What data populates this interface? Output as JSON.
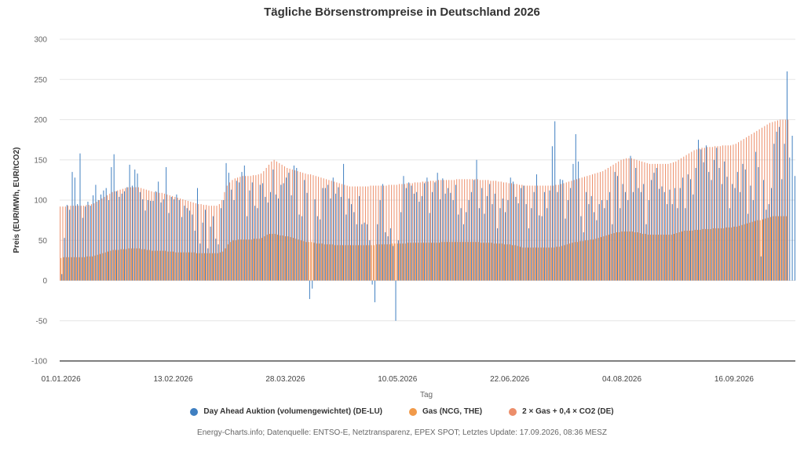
{
  "chart_data": {
    "type": "bar",
    "title": "Tägliche Börsenstrompreise in Deutschland 2026",
    "xlabel": "Tag",
    "ylabel": "Preis (EUR/MWh, EUR/tCO2)",
    "ylim": [
      -100,
      300
    ],
    "yticks": [
      -100,
      -50,
      0,
      50,
      100,
      150,
      200,
      250,
      300
    ],
    "xticks": [
      "01.01.2026",
      "13.02.2026",
      "28.03.2026",
      "10.05.2026",
      "22.06.2026",
      "04.08.2026",
      "16.09.2026"
    ],
    "xticks_day_index": [
      0,
      43,
      86,
      129,
      172,
      215,
      258
    ],
    "x_start": "01.01.2026",
    "grid": true,
    "legend_position": "bottom-center",
    "series": [
      {
        "name": "Day Ahead Auktion (volumengewichtet) (DE-LU)",
        "color": "#3f7fc1",
        "values": [
          8,
          53,
          94,
          88,
          135,
          128,
          95,
          158,
          78,
          92,
          98,
          93,
          106,
          119,
          100,
          107,
          112,
          115,
          100,
          141,
          157,
          111,
          104,
          108,
          111,
          116,
          144,
          118,
          138,
          133,
          110,
          101,
          87,
          100,
          99,
          99,
          111,
          123,
          97,
          101,
          141,
          84,
          104,
          101,
          107,
          100,
          79,
          93,
          90,
          87,
          82,
          62,
          115,
          46,
          72,
          88,
          40,
          67,
          80,
          52,
          45,
          90,
          100,
          146,
          134,
          113,
          100,
          124,
          122,
          135,
          143,
          80,
          112,
          122,
          93,
          90,
          119,
          121,
          104,
          97,
          110,
          138,
          107,
          102,
          119,
          121,
          128,
          134,
          106,
          143,
          140,
          82,
          80,
          125,
          109,
          -23,
          -10,
          101,
          80,
          76,
          115,
          115,
          119,
          102,
          128,
          108,
          116,
          104,
          145,
          82,
          102,
          95,
          85,
          70,
          105,
          70,
          72,
          70,
          50,
          -5,
          -27,
          70,
          100,
          120,
          60,
          55,
          65,
          43,
          -50,
          50,
          85,
          130,
          115,
          122,
          118,
          108,
          110,
          98,
          105,
          121,
          128,
          84,
          110,
          122,
          134,
          101,
          127,
          108,
          115,
          109,
          100,
          119,
          82,
          90,
          70,
          85,
          100,
          110,
          125,
          150,
          90,
          115,
          83,
          105,
          120,
          95,
          108,
          65,
          90,
          102,
          85,
          100,
          128,
          123,
          104,
          96,
          115,
          118,
          95,
          65,
          90,
          110,
          132,
          81,
          80,
          110,
          90,
          112,
          167,
          198,
          110,
          126,
          125,
          77,
          100,
          115,
          145,
          182,
          148,
          80,
          60,
          110,
          95,
          105,
          85,
          75,
          95,
          100,
          90,
          100,
          110,
          70,
          135,
          130,
          90,
          120,
          110,
          100,
          155,
          110,
          140,
          115,
          110,
          120,
          70,
          100,
          125,
          134,
          140,
          114,
          117,
          110,
          95,
          113,
          95,
          115,
          90,
          115,
          128,
          90,
          132,
          126,
          107,
          140,
          175,
          163,
          147,
          168,
          135,
          125,
          150,
          165,
          140,
          120,
          148,
          129,
          90,
          120,
          115,
          135,
          110,
          145,
          138,
          83,
          118,
          100,
          160,
          141,
          30,
          125,
          88,
          95,
          115,
          170,
          185,
          191,
          126,
          170,
          260,
          153,
          180,
          130
        ]
      },
      {
        "name": "Gas (NCG, THE)",
        "color": "#f19a4a",
        "values": [
          28,
          29,
          29,
          29,
          29,
          29,
          29,
          29,
          29,
          29,
          30,
          30,
          30,
          31,
          32,
          33,
          34,
          35,
          36,
          37,
          38,
          38,
          38,
          39,
          39,
          39,
          40,
          40,
          40,
          40,
          40,
          39,
          39,
          38,
          38,
          37,
          37,
          37,
          37,
          37,
          37,
          36,
          36,
          36,
          35,
          35,
          35,
          35,
          35,
          35,
          35,
          35,
          34,
          34,
          34,
          34,
          34,
          34,
          34,
          34,
          34,
          35,
          36,
          40,
          45,
          48,
          50,
          50,
          51,
          51,
          51,
          51,
          51,
          51,
          52,
          52,
          52,
          53,
          55,
          57,
          58,
          58,
          58,
          57,
          56,
          56,
          55,
          55,
          54,
          53,
          52,
          51,
          50,
          49,
          48,
          48,
          48,
          47,
          46,
          46,
          46,
          45,
          45,
          45,
          45,
          44,
          44,
          44,
          44,
          44,
          44,
          44,
          44,
          44,
          44,
          44,
          44,
          44,
          44,
          44,
          44,
          45,
          45,
          45,
          45,
          45,
          45,
          46,
          46,
          46,
          46,
          46,
          46,
          47,
          47,
          47,
          47,
          47,
          47,
          47,
          47,
          47,
          47,
          47,
          47,
          47,
          48,
          48,
          48,
          48,
          48,
          48,
          48,
          48,
          48,
          48,
          48,
          48,
          48,
          48,
          48,
          47,
          47,
          47,
          47,
          47,
          46,
          46,
          46,
          46,
          45,
          45,
          45,
          44,
          44,
          43,
          42,
          41,
          41,
          41,
          41,
          41,
          41,
          41,
          41,
          41,
          41,
          41,
          41,
          41,
          42,
          42,
          43,
          44,
          45,
          46,
          47,
          48,
          48,
          49,
          49,
          50,
          50,
          51,
          51,
          52,
          53,
          54,
          55,
          56,
          57,
          58,
          59,
          60,
          60,
          61,
          61,
          61,
          61,
          61,
          60,
          60,
          59,
          58,
          58,
          57,
          57,
          57,
          57,
          57,
          57,
          57,
          57,
          57,
          57,
          58,
          59,
          60,
          61,
          62,
          62,
          62,
          62,
          63,
          63,
          63,
          64,
          64,
          64,
          64,
          65,
          65,
          65,
          65,
          65,
          66,
          66,
          66,
          67,
          67,
          68,
          69,
          70,
          71,
          72,
          73,
          74,
          75,
          75,
          76,
          77,
          78,
          79,
          80,
          80,
          80,
          80,
          80,
          80
        ]
      },
      {
        "name": "2 × Gas + 0,4 × CO2 (DE)",
        "color": "#ec8e6a",
        "values": [
          92,
          92,
          92,
          93,
          93,
          93,
          93,
          93,
          93,
          93,
          94,
          94,
          95,
          96,
          98,
          100,
          102,
          104,
          106,
          108,
          110,
          111,
          112,
          113,
          114,
          115,
          116,
          116,
          116,
          116,
          116,
          115,
          114,
          113,
          112,
          111,
          110,
          110,
          109,
          109,
          108,
          107,
          106,
          105,
          104,
          103,
          102,
          101,
          100,
          99,
          98,
          97,
          96,
          95,
          95,
          94,
          94,
          93,
          93,
          93,
          93,
          95,
          100,
          110,
          118,
          122,
          125,
          127,
          128,
          129,
          130,
          130,
          130,
          130,
          131,
          131,
          132,
          133,
          136,
          140,
          144,
          148,
          150,
          148,
          146,
          144,
          142,
          140,
          139,
          138,
          137,
          136,
          135,
          134,
          133,
          132,
          132,
          131,
          130,
          129,
          128,
          127,
          126,
          125,
          124,
          123,
          122,
          121,
          120,
          119,
          118,
          117,
          117,
          117,
          117,
          117,
          117,
          117,
          117,
          118,
          118,
          118,
          118,
          118,
          118,
          118,
          119,
          119,
          119,
          119,
          120,
          120,
          120,
          121,
          121,
          121,
          122,
          122,
          122,
          123,
          123,
          123,
          124,
          124,
          124,
          125,
          125,
          125,
          125,
          125,
          125,
          125,
          126,
          126,
          126,
          126,
          126,
          126,
          126,
          126,
          126,
          125,
          125,
          125,
          125,
          124,
          124,
          124,
          123,
          123,
          122,
          122,
          121,
          121,
          120,
          120,
          119,
          119,
          118,
          118,
          118,
          118,
          118,
          118,
          118,
          118,
          118,
          118,
          118,
          118,
          119,
          119,
          120,
          121,
          122,
          123,
          124,
          125,
          126,
          127,
          128,
          129,
          130,
          131,
          132,
          133,
          134,
          135,
          136,
          138,
          140,
          142,
          144,
          146,
          148,
          150,
          151,
          152,
          152,
          152,
          151,
          150,
          149,
          148,
          147,
          146,
          145,
          145,
          145,
          145,
          145,
          145,
          145,
          145,
          146,
          147,
          148,
          150,
          152,
          154,
          156,
          158,
          160,
          162,
          163,
          164,
          165,
          165,
          166,
          166,
          166,
          167,
          167,
          167,
          168,
          168,
          168,
          168,
          169,
          170,
          172,
          174,
          176,
          178,
          180,
          182,
          184,
          186,
          188,
          190,
          192,
          194,
          196,
          197,
          198,
          199,
          200,
          200,
          200,
          200
        ]
      }
    ]
  },
  "legend": {
    "items": [
      {
        "label": "Day Ahead Auktion (volumengewichtet) (DE-LU)",
        "color": "#3f7fc1"
      },
      {
        "label": "Gas (NCG, THE)",
        "color": "#f19a4a"
      },
      {
        "label": "2 × Gas + 0,4 × CO2 (DE)",
        "color": "#ec8e6a"
      }
    ]
  },
  "credits": "Energy-Charts.info; Datenquelle: ENTSO-E, Netztransparenz, EPEX SPOT;   Letztes Update: 17.09.2026, 08:36 MESZ"
}
